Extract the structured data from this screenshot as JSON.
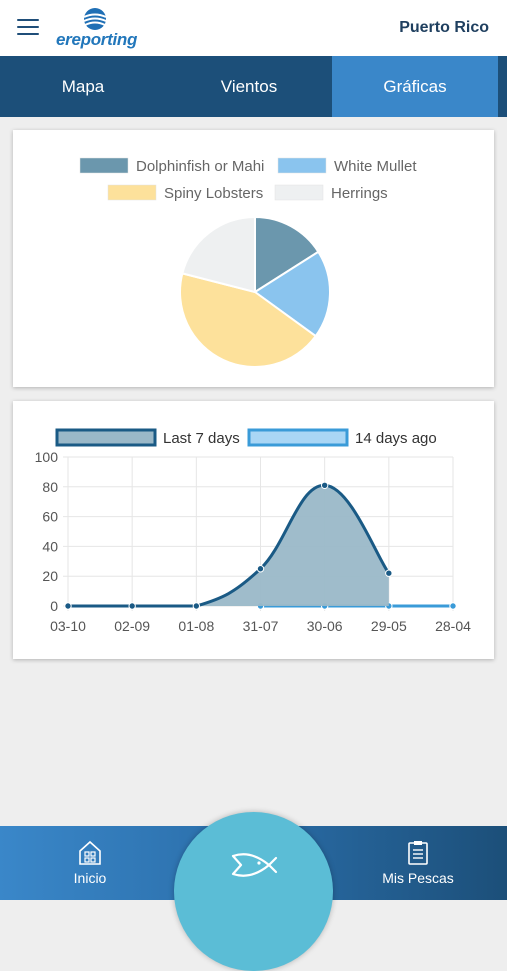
{
  "header": {
    "logo_text": "ereporting",
    "region": "Puerto Rico"
  },
  "tabs": [
    {
      "label": "Mapa",
      "active": false
    },
    {
      "label": "Vientos",
      "active": false
    },
    {
      "label": "Gráficas",
      "active": true
    }
  ],
  "bottom_nav": {
    "home_label": "Inicio",
    "catches_label": "Mis Pescas",
    "fab_icon": "fish-icon"
  },
  "colors": {
    "header_bar": "#1c4f79",
    "active_tab": "#3a87c9",
    "fab": "#5bbdd6"
  },
  "chart_data": [
    {
      "type": "pie",
      "title": "",
      "legend_placement": "top",
      "slices": [
        {
          "label": "Dolphinfish or Mahi",
          "value": 16,
          "color": "#6b97ad"
        },
        {
          "label": "White Mullet",
          "value": 19,
          "color": "#8ac4ee"
        },
        {
          "label": "Spiny Lobsters",
          "value": 44,
          "color": "#fde19b"
        },
        {
          "label": "Herrings",
          "value": 21,
          "color": "#eef0f1"
        }
      ]
    },
    {
      "type": "area",
      "title": "",
      "xlabel": "",
      "ylabel": "",
      "legend_placement": "top",
      "grid": true,
      "categories": [
        "03-10",
        "02-09",
        "01-08",
        "31-07",
        "30-06",
        "29-05",
        "28-04"
      ],
      "ylim": [
        0,
        100
      ],
      "yticks": [
        0,
        20,
        40,
        60,
        80,
        100
      ],
      "series": [
        {
          "name": "Last 7 days",
          "values": [
            0,
            0,
            0,
            25,
            81,
            22,
            null
          ],
          "color": "#1a5a85",
          "fill": "#9ab8c8"
        },
        {
          "name": "14 days ago",
          "values": [
            null,
            null,
            null,
            0,
            0,
            0,
            0
          ],
          "color": "#3a9bd8",
          "fill": "#a9d6f5"
        }
      ]
    }
  ]
}
